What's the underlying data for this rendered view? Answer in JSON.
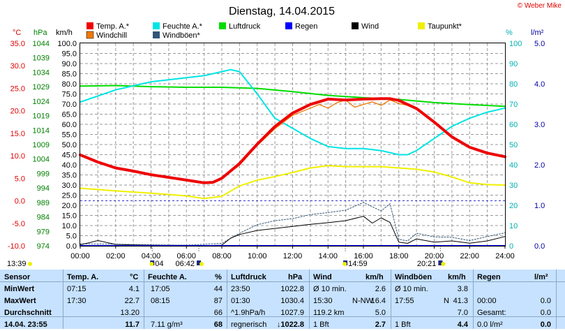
{
  "copyright": "© Weber Mike",
  "chart_data": {
    "type": "line",
    "title": "Dienstag, 14.04.2015",
    "x_ticks": [
      "00:00",
      "02:00",
      "04:00",
      "06:00",
      "08:00",
      "10:00",
      "12:00",
      "14:00",
      "16:00",
      "18:00",
      "20:00",
      "22:00",
      "24:00"
    ],
    "axes": [
      {
        "unit": "°C",
        "color": "#e00000",
        "range": [
          -10,
          35
        ],
        "ticks": [
          "35.0",
          "30.0",
          "25.0",
          "20.0",
          "15.0",
          "10.0",
          "5.0",
          "0.0",
          "-5.0",
          "-10.0"
        ]
      },
      {
        "unit": "hPa",
        "color": "#008000",
        "range": [
          974,
          1044
        ],
        "ticks": [
          "1044",
          "1039",
          "1034",
          "1029",
          "1024",
          "1019",
          "1014",
          "1009",
          "1004",
          "999",
          "994",
          "989",
          "984",
          "979",
          "974"
        ]
      },
      {
        "unit": "km/h",
        "color": "#000000",
        "range": [
          0,
          100
        ],
        "ticks": [
          "100.0",
          "95.0",
          "90.0",
          "85.0",
          "80.0",
          "75.0",
          "70.0",
          "65.0",
          "60.0",
          "55.0",
          "50.0",
          "45.0",
          "40.0",
          "35.0",
          "30.0",
          "25.0",
          "20.0",
          "15.0",
          "10.0",
          "5.0",
          "0.0"
        ]
      },
      {
        "unit": "%",
        "color": "#00b0b0",
        "range": [
          0,
          100
        ],
        "ticks": [
          "100",
          "90",
          "80",
          "70",
          "60",
          "50",
          "40",
          "30",
          "20",
          "10",
          "0"
        ]
      },
      {
        "unit": "l/m²",
        "color": "#0000a0",
        "range": [
          0,
          5
        ],
        "ticks": [
          "5.0",
          "4.0",
          "3.0",
          "2.0",
          "1.0",
          "0.0"
        ]
      }
    ],
    "legend": [
      "Temp. A.*",
      "Windchill",
      "Feuchte A.*",
      "Windböen*",
      "Luftdruck",
      "Regen",
      "Wind",
      "Taupunkt*"
    ],
    "series": [
      {
        "name": "Temp. A.*",
        "color": "#ee0000",
        "x": [
          0,
          1,
          2,
          3,
          4,
          5,
          6,
          7,
          7.5,
          8,
          9,
          10,
          11,
          12,
          13,
          14,
          15,
          16,
          17,
          17.5,
          18,
          19,
          20,
          21,
          22,
          23,
          24
        ],
        "y": [
          10.2,
          8.6,
          7.3,
          6.6,
          5.8,
          5.2,
          4.6,
          4.0,
          4.1,
          5.0,
          8.3,
          12.6,
          16.5,
          19.5,
          21.4,
          22.6,
          22.4,
          22.6,
          22.7,
          22.7,
          22.3,
          20.5,
          17.5,
          14.2,
          11.9,
          10.6,
          9.8
        ]
      },
      {
        "name": "Windchill",
        "color": "#f07800",
        "x": [
          0,
          2,
          4,
          6,
          7,
          7.5,
          8,
          9,
          10,
          11,
          12,
          13,
          13.5,
          14,
          14.5,
          15,
          15.5,
          16,
          16.5,
          17,
          17.5,
          18,
          18.5,
          19,
          20,
          21,
          22,
          23,
          24
        ],
        "y": [
          10.2,
          7.3,
          5.8,
          4.6,
          4.0,
          4.1,
          4.9,
          7.9,
          12.3,
          16.0,
          19.0,
          20.6,
          21.4,
          20.6,
          21.8,
          22.4,
          20.8,
          21.4,
          22.0,
          21.2,
          22.4,
          21.6,
          21.2,
          20.4,
          17.3,
          14.0,
          11.8,
          10.6,
          9.8
        ]
      },
      {
        "name": "Feuchte A.*",
        "color": "#00e5e5",
        "x": [
          0,
          1,
          2,
          3,
          4,
          5,
          6,
          7,
          8,
          8.5,
          9,
          10,
          11,
          12,
          13,
          14,
          15,
          16,
          17,
          18,
          18.5,
          19,
          20,
          21,
          22,
          23,
          24
        ],
        "y": [
          71,
          74,
          77,
          79,
          81,
          82,
          83,
          84,
          86,
          87,
          86,
          75,
          63,
          58,
          53,
          49,
          48,
          48,
          47,
          45,
          45,
          47,
          53,
          59,
          63,
          66,
          68
        ]
      },
      {
        "name": "Luftdruck",
        "color": "#00dd00",
        "x": [
          0,
          2,
          4,
          6,
          8,
          10,
          12,
          14,
          16,
          18,
          20,
          22,
          24
        ],
        "y": [
          1029.2,
          1029.4,
          1029.0,
          1028.8,
          1028.8,
          1028.4,
          1027.3,
          1026.0,
          1025.2,
          1024.6,
          1023.5,
          1022.8,
          1022.2
        ]
      },
      {
        "name": "Regen",
        "color": "#0000ff",
        "x": [
          0,
          24
        ],
        "y": [
          0.0,
          0.0
        ]
      },
      {
        "name": "Wind",
        "color": "#000000",
        "x": [
          0,
          1,
          2,
          3,
          4,
          5,
          6,
          7,
          8,
          8.5,
          9,
          10,
          11,
          12,
          13,
          14,
          15,
          16,
          16.5,
          17,
          17.5,
          18,
          18.5,
          19,
          20,
          21,
          22,
          23,
          24
        ],
        "y": [
          0.5,
          2.6,
          0.7,
          0.4,
          0.3,
          0.2,
          0.2,
          0.1,
          0.3,
          3.8,
          5.6,
          7.6,
          8.6,
          9.6,
          10.6,
          11.4,
          12.4,
          14.6,
          11.2,
          13.8,
          11.6,
          1.8,
          1.2,
          3.4,
          1.8,
          2.4,
          1.3,
          2.4,
          4.6
        ]
      },
      {
        "name": "Windböen*",
        "color": "#335577",
        "x": [
          0,
          2,
          4,
          6,
          8,
          9,
          10,
          11,
          12,
          13,
          14,
          15,
          16,
          17,
          17.5,
          18,
          18.5,
          19,
          20,
          21,
          22,
          23,
          24
        ],
        "y": [
          1.0,
          0.8,
          0.5,
          0.3,
          1.2,
          6.2,
          10.4,
          12.4,
          13.4,
          15.4,
          16.4,
          17.6,
          21.4,
          17.2,
          20.8,
          3.2,
          2.4,
          6.2,
          4.4,
          4.2,
          2.6,
          4.6,
          6.4
        ]
      },
      {
        "name": "Taupunkt*",
        "color": "#f0f000",
        "x": [
          0,
          2,
          4,
          6,
          7,
          8,
          9,
          10,
          11,
          12,
          13,
          14,
          15,
          16,
          17,
          18,
          19,
          20,
          21,
          22,
          23,
          24
        ],
        "y": [
          2.8,
          2.2,
          1.7,
          1.1,
          0.5,
          1.0,
          3.3,
          4.6,
          5.4,
          6.3,
          7.3,
          7.8,
          7.6,
          7.6,
          7.6,
          7.3,
          7.0,
          6.4,
          5.3,
          4.0,
          3.6,
          3.5
        ]
      }
    ],
    "markers": {
      "sun": [
        {
          "label": "04:04",
          "cut": "04"
        },
        {
          "label": "06:42"
        },
        {
          "label": "14:59"
        },
        {
          "label": "20:21"
        }
      ],
      "update": "13:39"
    }
  },
  "stats": {
    "headers": {
      "sensor": "Sensor",
      "temp": "Temp. A.",
      "temp_unit": "°C",
      "feuchte": "Feuchte A.",
      "feuchte_unit": "%",
      "luftdruck": "Luftdruck",
      "luftdruck_unit": "hPa",
      "wind": "Wind",
      "wind_unit": "km/h",
      "windboen": "Windböen",
      "windboen_unit": "km/h",
      "regen": "Regen",
      "regen_unit": "l/m²"
    },
    "rows": [
      {
        "label": "MinWert",
        "t_time": "07:15",
        "t_val": "4.1",
        "f_time": "17:05",
        "f_val": "44",
        "l_time": "23:50",
        "l_val": "1022.8",
        "w_a": "Ø 10 min.",
        "w_b": "",
        "w_val": "2.6",
        "b_a": "Ø 10 min.",
        "b_b": "",
        "b_val": "3.8",
        "r_a": "",
        "r_val": ""
      },
      {
        "label": "MaxWert",
        "t_time": "17:30",
        "t_val": "22.7",
        "f_time": "08:15",
        "f_val": "87",
        "l_time": "01:30",
        "l_val": "1030.4",
        "w_a": "15:30",
        "w_b": "N-NW",
        "w_val": "16.4",
        "b_a": "17:55",
        "b_b": "N",
        "b_val": "41.3",
        "r_a": "00:00",
        "r_val": "0.0"
      },
      {
        "label": "Durchschnitt",
        "t_time": "",
        "t_val": "13.20",
        "f_time": "",
        "f_val": "66",
        "l_time": "^1.9hPa/h",
        "l_val": "1027.9",
        "w_a": "119.2 km",
        "w_b": "",
        "w_val": "5.0",
        "b_a": "",
        "b_b": "",
        "b_val": "7.0",
        "r_a": "Gesamt:",
        "r_val": "0.0"
      },
      {
        "label": "14.04. 23:55",
        "t_time": "",
        "t_val": "11.7",
        "f_time": "7.11 g/m³",
        "f_val": "68",
        "l_time": "regnerisch",
        "l_val": "↓1022.8",
        "w_a": "1 Bft",
        "w_b": "",
        "w_val": "2.7",
        "b_a": "1 Bft",
        "b_b": "",
        "b_val": "4.4",
        "r_a": "0.0 l/m²",
        "r_val": "0.0"
      }
    ]
  }
}
